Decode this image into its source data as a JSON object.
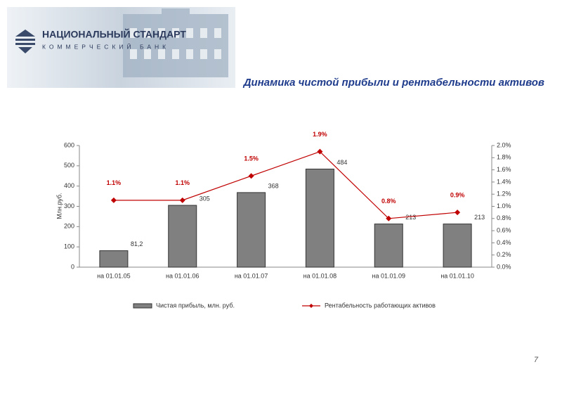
{
  "header": {
    "logo_name": "НАЦИОНАЛЬНЫЙ СТАНДАРТ",
    "logo_sub": "КОММЕРЧЕСКИЙ БАНК",
    "title": "Динамика чистой прибыли и рентабельности активов"
  },
  "chart_data": {
    "type": "bar",
    "categories": [
      "на 01.01.05",
      "на 01.01.06",
      "на 01.01.07",
      "на 01.01.08",
      "на 01.01.09",
      "на 01.01.10"
    ],
    "ylabel": "Млн.руб.",
    "series": [
      {
        "name": "Чистая прибыль, млн. руб.",
        "color": "#808080",
        "values": [
          81.2,
          305,
          368,
          484,
          213,
          213
        ],
        "value_labels": [
          "81,2",
          "305",
          "368",
          "484",
          "213",
          "213"
        ]
      },
      {
        "name": "Рентабельность работающих активов",
        "color": "#c00000",
        "type": "line",
        "axis": "y2",
        "values": [
          1.1,
          1.1,
          1.5,
          1.9,
          0.8,
          0.9
        ],
        "value_labels": [
          "1.1%",
          "1.1%",
          "1.5%",
          "1.9%",
          "0.8%",
          "0.9%"
        ]
      }
    ],
    "ylim": [
      0,
      600
    ],
    "yticks": [
      0,
      100,
      200,
      300,
      400,
      500,
      600
    ],
    "y2lim": [
      0,
      2.0
    ],
    "y2ticks": [
      {
        "value": 0,
        "label": "0.0%"
      },
      {
        "value": 0.2,
        "label": "0.2%"
      },
      {
        "value": 0.4,
        "label": "0.4%"
      },
      {
        "value": 0.6,
        "label": "0.6%"
      },
      {
        "value": 0.8,
        "label": "0.8%"
      },
      {
        "value": 1.0,
        "label": "1.0%"
      },
      {
        "value": 1.2,
        "label": "1.2%"
      },
      {
        "value": 1.4,
        "label": "1.4%"
      },
      {
        "value": 1.6,
        "label": "1.6%"
      },
      {
        "value": 1.8,
        "label": "1.8%"
      },
      {
        "value": 2.0,
        "label": "2.0%"
      }
    ],
    "legend": "bottom"
  },
  "page_number": "7"
}
